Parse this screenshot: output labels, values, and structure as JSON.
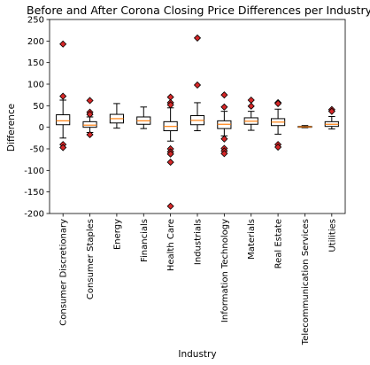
{
  "chart_data": {
    "type": "box",
    "title": "Before and After Corona Closing Price Differences per Industry",
    "xlabel": "Industry",
    "ylabel": "Difference",
    "ylim": [
      -200,
      250
    ],
    "yticks": [
      -200,
      -150,
      -100,
      -50,
      0,
      50,
      100,
      150,
      200,
      250
    ],
    "grid": false,
    "colors": {
      "box": "#000000",
      "median": "#ff7f0e",
      "flier": "#d62728",
      "flier_edge": "#000000"
    },
    "categories": [
      "Consumer Discretionary",
      "Consumer Staples",
      "Energy",
      "Financials",
      "Health Care",
      "Industrials",
      "Information Technology",
      "Materials",
      "Real Estate",
      "Telecommunication Services",
      "Utilities"
    ],
    "boxes": [
      {
        "category": "Consumer Discretionary",
        "whisker_low": -25,
        "q1": 6,
        "median": 15,
        "q3": 29,
        "whisker_high": 63,
        "outliers": [
          193,
          72,
          -40,
          -47
        ]
      },
      {
        "category": "Consumer Staples",
        "whisker_low": -12,
        "q1": 0,
        "median": 5,
        "q3": 13,
        "whisker_high": 24,
        "outliers": [
          62,
          35,
          30,
          -17
        ]
      },
      {
        "category": "Energy",
        "whisker_low": -2,
        "q1": 10,
        "median": 20,
        "q3": 30,
        "whisker_high": 55,
        "outliers": []
      },
      {
        "category": "Financials",
        "whisker_low": -3,
        "q1": 7,
        "median": 15,
        "q3": 24,
        "whisker_high": 47,
        "outliers": []
      },
      {
        "category": "Health Care",
        "whisker_low": -32,
        "q1": -8,
        "median": 2,
        "q3": 13,
        "whisker_high": 45,
        "outliers": [
          70,
          57,
          52,
          -50,
          -57,
          -62,
          -81,
          -183
        ]
      },
      {
        "category": "Industrials",
        "whisker_low": -8,
        "q1": 6,
        "median": 16,
        "q3": 27,
        "whisker_high": 57,
        "outliers": [
          207,
          98
        ]
      },
      {
        "category": "Information Technology",
        "whisker_low": -20,
        "q1": -3,
        "median": 7,
        "q3": 15,
        "whisker_high": 37,
        "outliers": [
          75,
          47,
          -27,
          -49,
          -55,
          -61
        ]
      },
      {
        "category": "Materials",
        "whisker_low": -7,
        "q1": 7,
        "median": 14,
        "q3": 22,
        "whisker_high": 37,
        "outliers": [
          63,
          49
        ]
      },
      {
        "category": "Real Estate",
        "whisker_low": -16,
        "q1": 4,
        "median": 12,
        "q3": 20,
        "whisker_high": 42,
        "outliers": [
          57,
          55,
          -40,
          -46
        ]
      },
      {
        "category": "Telecommunication Services",
        "whisker_low": -1,
        "q1": 0,
        "median": 1,
        "q3": 2,
        "whisker_high": 4,
        "outliers": []
      },
      {
        "category": "Utilities",
        "whisker_low": -4,
        "q1": 2,
        "median": 7,
        "q3": 13,
        "whisker_high": 25,
        "outliers": [
          41,
          37
        ]
      }
    ]
  }
}
